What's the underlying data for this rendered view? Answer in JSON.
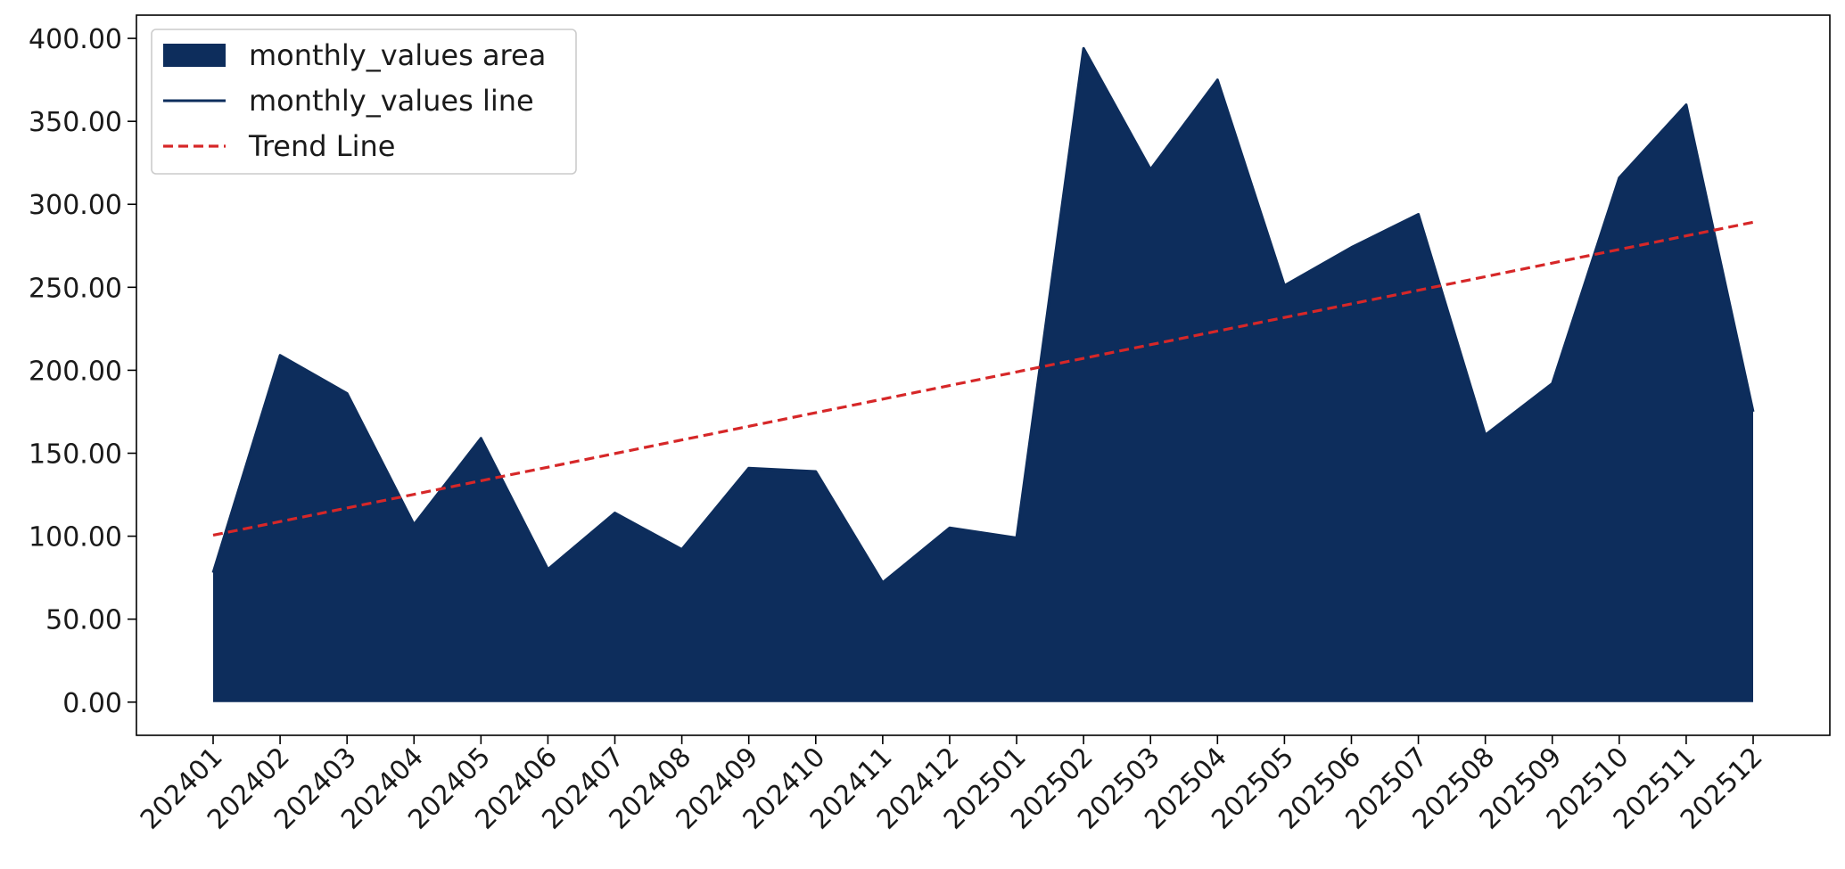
{
  "chart_data": {
    "type": "area",
    "title": "",
    "xlabel": "",
    "ylabel": "",
    "categories": [
      "202401",
      "202402",
      "202403",
      "202404",
      "202405",
      "202406",
      "202407",
      "202408",
      "202409",
      "202410",
      "202411",
      "202412",
      "202501",
      "202502",
      "202503",
      "202504",
      "202505",
      "202506",
      "202507",
      "202508",
      "202509",
      "202510",
      "202511",
      "202512"
    ],
    "series": [
      {
        "name": "monthly_values area",
        "kind": "area",
        "color": "#0d2d5c",
        "values": [
          78,
          209,
          186,
          107,
          159,
          80,
          114,
          92,
          141,
          139,
          72,
          105,
          99,
          394,
          321,
          375,
          251,
          274,
          294,
          161,
          192,
          316,
          360,
          175
        ]
      },
      {
        "name": "monthly_values line",
        "kind": "line",
        "color": "#0d2d5c",
        "values": [
          78,
          209,
          186,
          107,
          159,
          80,
          114,
          92,
          141,
          139,
          72,
          105,
          99,
          394,
          321,
          375,
          251,
          274,
          294,
          161,
          192,
          316,
          360,
          175
        ]
      },
      {
        "name": "Trend Line",
        "kind": "trend",
        "color": "#d62728",
        "style": "dashed",
        "values": [
          100.6,
          108.8,
          117.0,
          125.2,
          133.4,
          141.6,
          149.8,
          158.0,
          166.2,
          174.4,
          182.6,
          190.8,
          199.0,
          207.2,
          215.4,
          223.6,
          231.8,
          240.0,
          248.2,
          256.4,
          264.6,
          272.8,
          281.0,
          289.2
        ]
      }
    ],
    "ylim": [
      -20,
      414
    ],
    "yticks": [
      0,
      50,
      100,
      150,
      200,
      250,
      300,
      350,
      400
    ],
    "ytick_labels": [
      "0.00",
      "50.00",
      "100.00",
      "150.00",
      "200.00",
      "250.00",
      "300.00",
      "350.00",
      "400.00"
    ],
    "grid": false,
    "legend_position": "upper-left",
    "x_tick_rotation": 45
  }
}
